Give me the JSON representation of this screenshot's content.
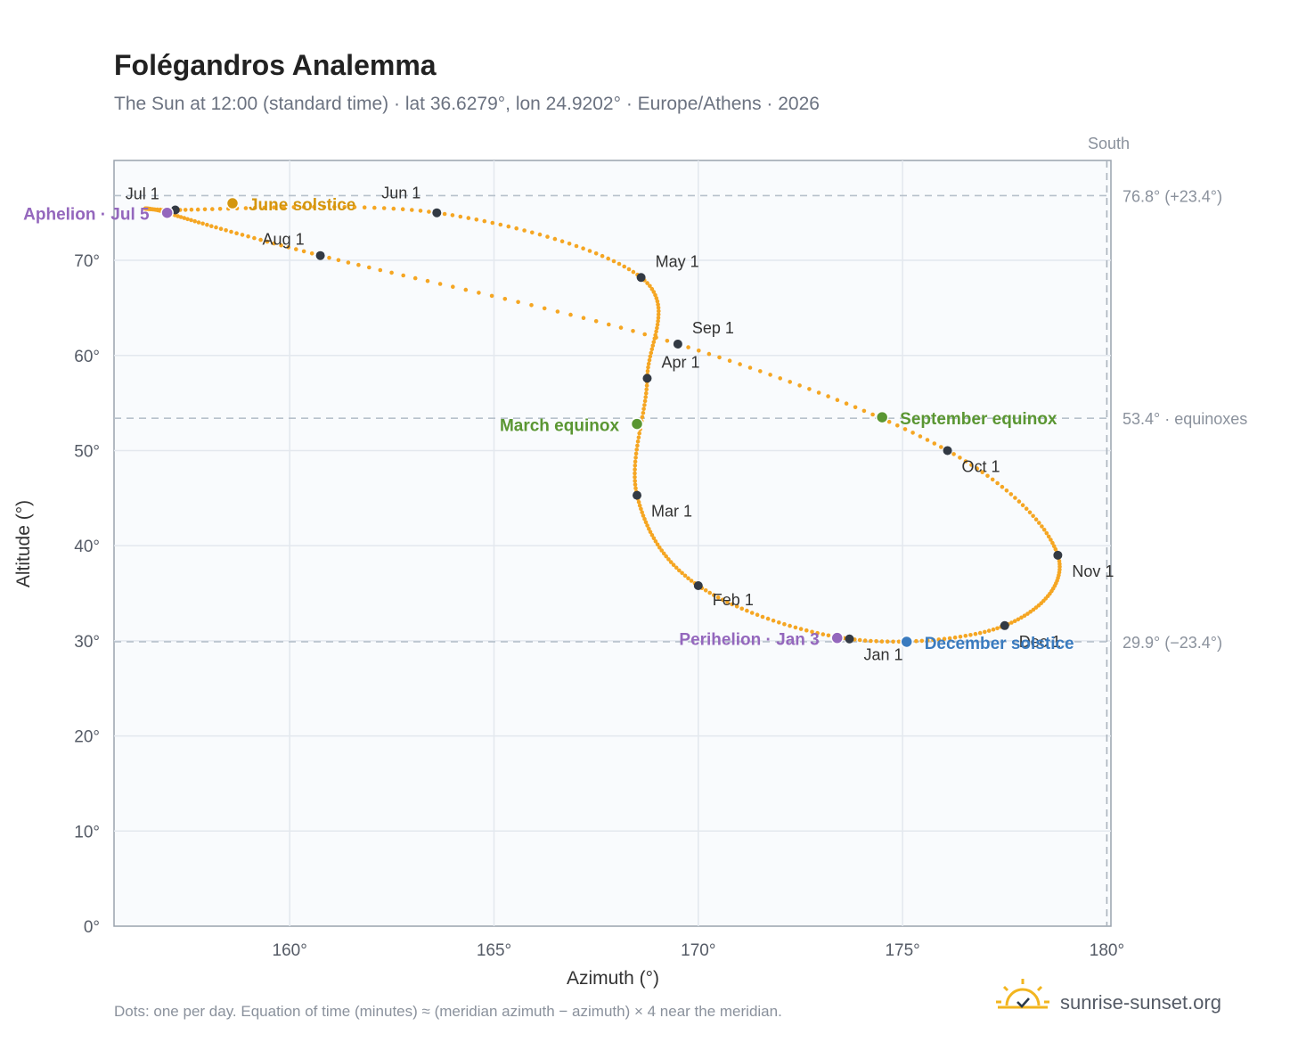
{
  "header": {
    "title": "Folégandros Analemma",
    "subtitle": "The Sun at 12:00 (standard time) · lat 36.6279°, lon 24.9202° · Europe/Athens · 2026"
  },
  "footer": {
    "note": "Dots: one per day. Equation of time (minutes) ≈ (meridian azimuth − azimuth) × 4 near the meridian.",
    "brand": "sunrise-sunset.org"
  },
  "chart_data": {
    "type": "scatter",
    "title": "Folégandros Analemma",
    "xlabel": "Azimuth (°)",
    "ylabel": "Altitude (°)",
    "xlim": [
      155.7,
      180.1
    ],
    "ylim": [
      0,
      80.5
    ],
    "xticks": [
      160,
      165,
      170,
      175,
      180
    ],
    "xtick_labels": [
      "160°",
      "165°",
      "170°",
      "175°",
      "180°"
    ],
    "yticks": [
      0,
      10,
      20,
      30,
      40,
      50,
      60,
      70
    ],
    "ytick_labels": [
      "0°",
      "10°",
      "20°",
      "30°",
      "40°",
      "50°",
      "60°",
      "70°"
    ],
    "grid": true,
    "meridian": {
      "azimuth": 180,
      "label": "South"
    },
    "reference_lines": [
      {
        "altitude": 76.8,
        "label": "76.8° (+23.4°)"
      },
      {
        "altitude": 53.4,
        "label": "53.4° · equinoxes"
      },
      {
        "altitude": 29.9,
        "label": "29.9° (−23.4°)"
      }
    ],
    "series_color": "#f5a623",
    "month_points": [
      {
        "label": "Jan 1",
        "azimuth": 173.7,
        "altitude": 30.2
      },
      {
        "label": "Feb 1",
        "azimuth": 170.0,
        "altitude": 35.8
      },
      {
        "label": "Mar 1",
        "azimuth": 168.5,
        "altitude": 45.3
      },
      {
        "label": "Apr 1",
        "azimuth": 168.75,
        "altitude": 57.6
      },
      {
        "label": "May 1",
        "azimuth": 168.6,
        "altitude": 68.2
      },
      {
        "label": "Jun 1",
        "azimuth": 163.6,
        "altitude": 75.0
      },
      {
        "label": "Jul 1",
        "azimuth": 157.2,
        "altitude": 75.3
      },
      {
        "label": "Aug 1",
        "azimuth": 160.75,
        "altitude": 70.5
      },
      {
        "label": "Sep 1",
        "azimuth": 169.5,
        "altitude": 61.2
      },
      {
        "label": "Oct 1",
        "azimuth": 176.1,
        "altitude": 50.0
      },
      {
        "label": "Nov 1",
        "azimuth": 178.8,
        "altitude": 39.0
      },
      {
        "label": "Dec 1",
        "azimuth": 177.5,
        "altitude": 31.6
      }
    ],
    "events": [
      {
        "label": "Aphelion · Jul 5",
        "azimuth": 157.0,
        "altitude": 75.0,
        "color": "#9467bd"
      },
      {
        "label": "June solstice",
        "azimuth": 158.6,
        "altitude": 76.0,
        "color": "#d4960f"
      },
      {
        "label": "March equinox",
        "azimuth": 168.5,
        "altitude": 52.8,
        "color": "#5a9632"
      },
      {
        "label": "September equinox",
        "azimuth": 174.5,
        "altitude": 53.5,
        "color": "#5a9632"
      },
      {
        "label": "Perihelion · Jan 3",
        "azimuth": 173.4,
        "altitude": 30.3,
        "color": "#9467bd"
      },
      {
        "label": "December solstice",
        "azimuth": 175.1,
        "altitude": 29.9,
        "color": "#3a7bbf"
      }
    ]
  }
}
